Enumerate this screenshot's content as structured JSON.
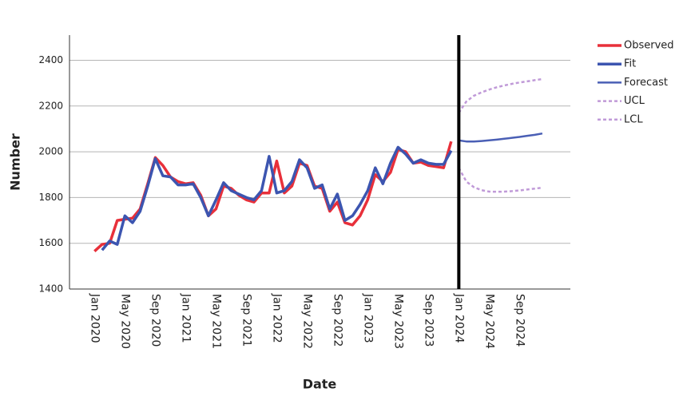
{
  "chart_data": {
    "type": "line",
    "x_label": "Date",
    "y_label": "Number",
    "categories": [
      "Jan 2020",
      null,
      null,
      null,
      "May 2020",
      null,
      null,
      null,
      "Sep 2020",
      null,
      null,
      null,
      "Jan 2021",
      null,
      null,
      null,
      "May 2021",
      null,
      null,
      null,
      "Sep 2021",
      null,
      null,
      null,
      "Jan 2022",
      null,
      null,
      null,
      "May 2022",
      null,
      null,
      null,
      "Sep 2022",
      null,
      null,
      null,
      "Jan 2023",
      null,
      null,
      null,
      "May 2023",
      null,
      null,
      null,
      "Sep 2023",
      null,
      null,
      null,
      "Jan 2024",
      null,
      null,
      null,
      "May 2024",
      null,
      null,
      null,
      "Sep 2024",
      null,
      null,
      null
    ],
    "ylim": [
      1400,
      2510
    ],
    "yticks": [
      1400,
      1600,
      1800,
      2000,
      2200,
      2400
    ],
    "grid": true,
    "legend": "right",
    "series": [
      {
        "name": "Observed",
        "color": "#e8303a",
        "width": 3.5,
        "dash": false,
        "values": [
          1565,
          1595,
          1600,
          1700,
          1705,
          1710,
          1750,
          1860,
          1975,
          1940,
          1890,
          1870,
          1860,
          1865,
          1810,
          1720,
          1750,
          1850,
          1840,
          1810,
          1790,
          1780,
          1820,
          1820,
          1960,
          1820,
          1850,
          1950,
          1940,
          1850,
          1840,
          1740,
          1780,
          1690,
          1680,
          1720,
          1790,
          1900,
          1870,
          1910,
          2010,
          2000,
          1950,
          1955,
          1940,
          1935,
          1930,
          2045,
          null,
          null,
          null,
          null,
          null,
          null,
          null,
          null,
          null,
          null,
          null,
          null
        ]
      },
      {
        "name": "Fit",
        "color": "#3c55b0",
        "width": 3.5,
        "dash": false,
        "values": [
          null,
          1570,
          1610,
          1595,
          1720,
          1690,
          1740,
          1850,
          1970,
          1895,
          1890,
          1855,
          1855,
          1860,
          1800,
          1720,
          1790,
          1865,
          1830,
          1815,
          1800,
          1790,
          1830,
          1980,
          1820,
          1830,
          1870,
          1965,
          1930,
          1840,
          1855,
          1750,
          1815,
          1700,
          1720,
          1770,
          1830,
          1930,
          1860,
          1950,
          2020,
          1990,
          1950,
          1965,
          1950,
          1945,
          1945,
          2005,
          null,
          null,
          null,
          null,
          null,
          null,
          null,
          null,
          null,
          null,
          null,
          null
        ]
      },
      {
        "name": "Forecast",
        "color": "#4a5fb5",
        "width": 2.5,
        "dash": false,
        "values": [
          null,
          null,
          null,
          null,
          null,
          null,
          null,
          null,
          null,
          null,
          null,
          null,
          null,
          null,
          null,
          null,
          null,
          null,
          null,
          null,
          null,
          null,
          null,
          null,
          null,
          null,
          null,
          null,
          null,
          null,
          null,
          null,
          null,
          null,
          null,
          null,
          null,
          null,
          null,
          null,
          null,
          null,
          null,
          null,
          null,
          null,
          null,
          null,
          2050,
          2045,
          2045,
          2047,
          2050,
          2053,
          2057,
          2061,
          2065,
          2070,
          2074,
          2080
        ]
      },
      {
        "name": "UCL",
        "color": "#c09ad8",
        "width": 2.5,
        "dash": true,
        "values": [
          null,
          null,
          null,
          null,
          null,
          null,
          null,
          null,
          null,
          null,
          null,
          null,
          null,
          null,
          null,
          null,
          null,
          null,
          null,
          null,
          null,
          null,
          null,
          null,
          null,
          null,
          null,
          null,
          null,
          null,
          null,
          null,
          null,
          null,
          null,
          null,
          null,
          null,
          null,
          null,
          null,
          null,
          null,
          null,
          null,
          null,
          null,
          null,
          2170,
          2220,
          2245,
          2260,
          2272,
          2282,
          2290,
          2297,
          2303,
          2308,
          2313,
          2318
        ]
      },
      {
        "name": "LCL",
        "color": "#c09ad8",
        "width": 2.5,
        "dash": true,
        "values": [
          null,
          null,
          null,
          null,
          null,
          null,
          null,
          null,
          null,
          null,
          null,
          null,
          null,
          null,
          null,
          null,
          null,
          null,
          null,
          null,
          null,
          null,
          null,
          null,
          null,
          null,
          null,
          null,
          null,
          null,
          null,
          null,
          null,
          null,
          null,
          null,
          null,
          null,
          null,
          null,
          null,
          null,
          null,
          null,
          null,
          null,
          null,
          null,
          1930,
          1870,
          1845,
          1832,
          1826,
          1825,
          1826,
          1828,
          1831,
          1835,
          1839,
          1843
        ]
      }
    ]
  }
}
